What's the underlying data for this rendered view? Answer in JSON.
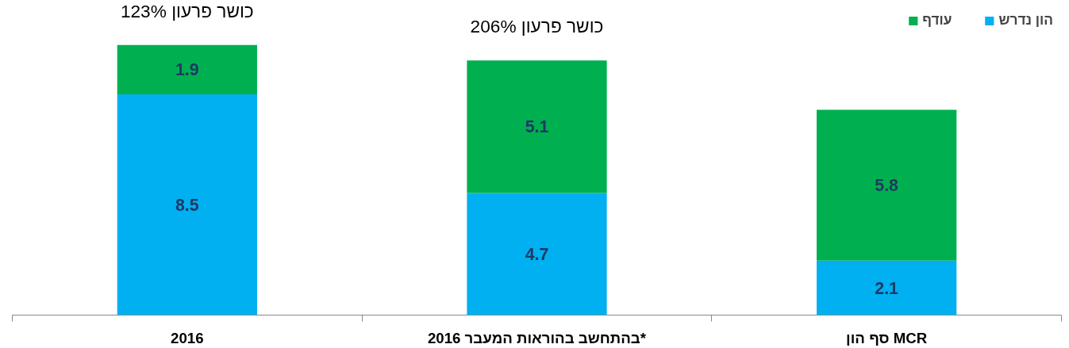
{
  "chart_data": {
    "type": "bar",
    "stacked": true,
    "categories": [
      "2016",
      "2016 בהתחשב בהוראות המעבר*",
      "סף הון MCR"
    ],
    "series": [
      {
        "name": "הון נדרש",
        "color": "#00b0f0",
        "values": [
          8.5,
          4.7,
          2.1
        ]
      },
      {
        "name": "עודף",
        "color": "#00b050",
        "values": [
          1.9,
          5.1,
          5.8
        ]
      }
    ],
    "data_labels": true,
    "annotations": [
      {
        "text": "כושר פרעון 123%",
        "x": "2016",
        "y": 10.4
      },
      {
        "text": "כושר פרעון 206%",
        "x": "2016 בהתחשב בהוראות המעבר*",
        "y": 9.8
      }
    ],
    "tick_labels": "x",
    "legend": "top right",
    "grid": false
  }
}
